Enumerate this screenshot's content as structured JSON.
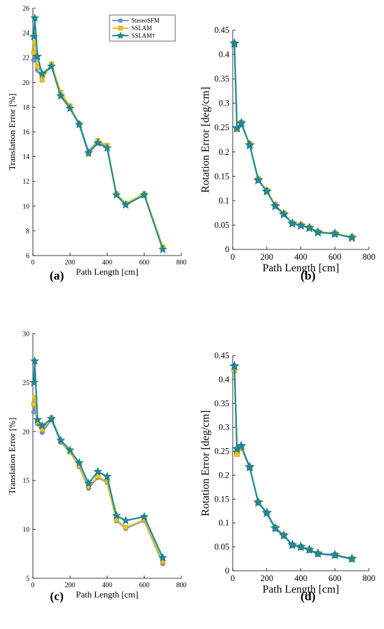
{
  "chart_data": [
    {
      "panel": "a",
      "type": "line",
      "caption": "(a)",
      "xlabel": "Path Length [cm]",
      "ylabel": "Translation Error [%]",
      "xlim": [
        0,
        800
      ],
      "ylim": [
        6,
        26
      ],
      "xticks": [
        0,
        200,
        400,
        600,
        800
      ],
      "yticks": [
        6,
        8,
        10,
        12,
        14,
        16,
        18,
        20,
        22,
        24,
        26
      ],
      "grid": false,
      "legend": {
        "position": "top-right"
      },
      "series": [
        {
          "name": "StereoSFM",
          "color": "#7094d6",
          "marker": "circle",
          "x": [
            5,
            10,
            25,
            50,
            100,
            150,
            200,
            250,
            300,
            350,
            400,
            450,
            500,
            600,
            700
          ],
          "y": [
            21.8,
            22.3,
            21.0,
            20.3,
            21.4,
            19.1,
            18.0,
            16.7,
            14.4,
            15.3,
            14.8,
            11.0,
            10.2,
            11.0,
            6.6
          ]
        },
        {
          "name": "SSLAM",
          "color": "#f0c21a",
          "marker": "square",
          "x": [
            5,
            10,
            25,
            50,
            100,
            150,
            200,
            250,
            300,
            350,
            400,
            450,
            500,
            600,
            700
          ],
          "y": [
            22.4,
            23.2,
            21.3,
            20.2,
            21.5,
            19.2,
            18.1,
            16.6,
            14.2,
            15.3,
            14.9,
            11.0,
            10.2,
            11.0,
            6.7
          ]
        },
        {
          "name": "SSLAM†",
          "color": "#1a8c9c",
          "marker": "star",
          "x": [
            5,
            10,
            25,
            50,
            100,
            150,
            200,
            250,
            300,
            350,
            400,
            450,
            500,
            600,
            700
          ],
          "y": [
            23.7,
            25.2,
            22.1,
            20.7,
            21.3,
            18.9,
            17.9,
            16.6,
            14.3,
            15.1,
            14.7,
            10.9,
            10.1,
            10.9,
            6.5
          ]
        }
      ]
    },
    {
      "panel": "b",
      "type": "line",
      "caption": "(b)",
      "xlabel": "Path Length [cm]",
      "ylabel": "Rotation Error [deg/cm]",
      "xlim": [
        0,
        800
      ],
      "ylim": [
        0,
        0.45
      ],
      "xticks": [
        0,
        200,
        400,
        600,
        800
      ],
      "yticks": [
        0,
        0.05,
        0.1,
        0.15,
        0.2,
        0.25,
        0.3,
        0.35,
        0.4,
        0.45
      ],
      "ytick_labels": [
        "0",
        "0.05",
        "0.1",
        "0.15",
        "0.2",
        "0.25",
        "0.3",
        "0.35",
        "0.4",
        "0.45"
      ],
      "grid": false,
      "series": [
        {
          "name": "StereoSFM",
          "color": "#7094d6",
          "marker": "circle",
          "x": [
            10,
            25,
            50,
            100,
            150,
            200,
            250,
            300,
            350,
            400,
            450,
            500,
            600,
            700
          ],
          "y": [
            0.42,
            0.248,
            0.258,
            0.215,
            0.143,
            0.12,
            0.09,
            0.073,
            0.054,
            0.05,
            0.045,
            0.036,
            0.032,
            0.025
          ]
        },
        {
          "name": "SSLAM",
          "color": "#f0c21a",
          "marker": "square",
          "x": [
            10,
            25,
            50,
            100,
            150,
            200,
            250,
            300,
            350,
            400,
            450,
            500,
            600,
            700
          ],
          "y": [
            0.421,
            0.246,
            0.26,
            0.216,
            0.144,
            0.121,
            0.091,
            0.074,
            0.054,
            0.05,
            0.045,
            0.036,
            0.033,
            0.025
          ]
        },
        {
          "name": "SSLAM†",
          "color": "#1a8c9c",
          "marker": "star",
          "x": [
            10,
            25,
            50,
            100,
            150,
            200,
            250,
            300,
            350,
            400,
            450,
            500,
            600,
            700
          ],
          "y": [
            0.423,
            0.249,
            0.259,
            0.214,
            0.142,
            0.119,
            0.089,
            0.072,
            0.053,
            0.049,
            0.044,
            0.035,
            0.032,
            0.024
          ]
        }
      ]
    },
    {
      "panel": "c",
      "type": "line",
      "caption": "(c)",
      "xlabel": "Path Length [cm]",
      "ylabel": "Translation Error [%]",
      "xlim": [
        0,
        800
      ],
      "ylim": [
        5,
        30
      ],
      "xticks": [
        0,
        200,
        400,
        600,
        800
      ],
      "yticks": [
        5,
        10,
        15,
        20,
        25,
        30
      ],
      "grid": false,
      "series": [
        {
          "name": "StereoSFM",
          "color": "#7094d6",
          "marker": "circle",
          "x": [
            5,
            10,
            25,
            50,
            100,
            150,
            200,
            250,
            300,
            350,
            400,
            450,
            500,
            600,
            700
          ],
          "y": [
            22.0,
            22.8,
            20.8,
            19.9,
            21.2,
            18.9,
            17.9,
            16.4,
            14.2,
            15.3,
            14.8,
            10.9,
            10.1,
            10.9,
            6.5
          ]
        },
        {
          "name": "SSLAM",
          "color": "#f0c21a",
          "marker": "square",
          "x": [
            5,
            10,
            25,
            50,
            100,
            150,
            200,
            250,
            300,
            350,
            400,
            450,
            500,
            600,
            700
          ],
          "y": [
            22.8,
            23.5,
            21.0,
            20.2,
            21.4,
            19.0,
            17.9,
            16.5,
            14.4,
            15.4,
            14.9,
            11.0,
            10.2,
            11.0,
            6.7
          ]
        },
        {
          "name": "SSLAM†",
          "color": "#1a8c9c",
          "marker": "star",
          "x": [
            5,
            10,
            25,
            50,
            100,
            150,
            200,
            250,
            300,
            350,
            400,
            450,
            500,
            600,
            700
          ],
          "y": [
            25.0,
            27.2,
            21.2,
            20.6,
            21.3,
            19.1,
            18.1,
            16.8,
            14.7,
            15.9,
            15.4,
            11.4,
            10.9,
            11.3,
            7.1
          ]
        }
      ]
    },
    {
      "panel": "d",
      "type": "line",
      "caption": "(d)",
      "xlabel": "Path Length [cm]",
      "ylabel": "Rotation Error [deg/cm]",
      "xlim": [
        0,
        800
      ],
      "ylim": [
        0,
        0.45
      ],
      "xticks": [
        0,
        200,
        400,
        600,
        800
      ],
      "yticks": [
        0,
        0.05,
        0.1,
        0.15,
        0.2,
        0.25,
        0.3,
        0.35,
        0.4,
        0.45
      ],
      "ytick_labels": [
        "0",
        "0.05",
        "0.1",
        "0.15",
        "0.2",
        "0.25",
        "0.3",
        "0.35",
        "0.4",
        "0.45"
      ],
      "grid": false,
      "series": [
        {
          "name": "StereoSFM",
          "color": "#7094d6",
          "marker": "circle",
          "x": [
            10,
            25,
            50,
            100,
            150,
            200,
            250,
            300,
            350,
            400,
            450,
            500,
            600,
            700
          ],
          "y": [
            0.418,
            0.245,
            0.257,
            0.215,
            0.142,
            0.12,
            0.088,
            0.073,
            0.053,
            0.049,
            0.043,
            0.035,
            0.032,
            0.024
          ]
        },
        {
          "name": "SSLAM",
          "color": "#f0c21a",
          "marker": "square",
          "x": [
            10,
            25,
            50,
            100,
            150,
            200,
            250,
            300,
            350,
            400,
            450,
            500,
            600,
            700
          ],
          "y": [
            0.42,
            0.244,
            0.258,
            0.216,
            0.143,
            0.121,
            0.09,
            0.074,
            0.054,
            0.05,
            0.044,
            0.036,
            0.033,
            0.025
          ]
        },
        {
          "name": "SSLAM†",
          "color": "#1a8c9c",
          "marker": "star",
          "x": [
            10,
            25,
            50,
            100,
            150,
            200,
            250,
            300,
            350,
            400,
            450,
            500,
            600,
            700
          ],
          "y": [
            0.428,
            0.255,
            0.261,
            0.217,
            0.143,
            0.121,
            0.089,
            0.074,
            0.054,
            0.05,
            0.044,
            0.036,
            0.033,
            0.025
          ]
        }
      ]
    }
  ]
}
